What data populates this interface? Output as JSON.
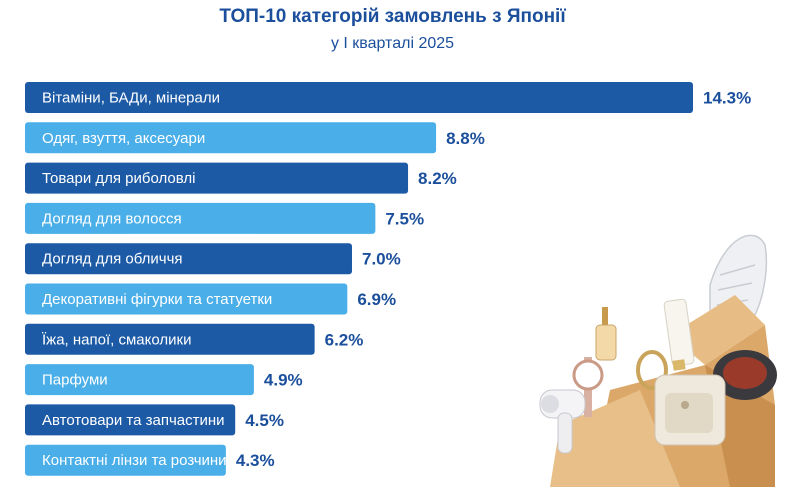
{
  "title": "ТОП-10 категорій замовлень з Японії",
  "subtitle": "у І кварталі 2025",
  "colors": {
    "dark": "#1c5aa6",
    "light": "#4aaee8",
    "text": "#1b4f9c",
    "box": "#e0b47c"
  },
  "illustration": {
    "name": "products-box-illustration"
  },
  "chart_data": {
    "type": "bar",
    "orientation": "horizontal",
    "categories": [
      "Вітаміни, БАДи, мінерали",
      "Одяг, взуття, аксесуари",
      "Товари для риболовлі",
      "Догляд для волосся",
      "Догляд для обличчя",
      "Декоративні фігурки та статуетки",
      "Їжа, напої, смаколики",
      "Парфуми",
      "Автотовари та запчастини",
      "Контактні лінзи та розчини"
    ],
    "values": [
      14.3,
      8.8,
      8.2,
      7.5,
      7.0,
      6.9,
      6.2,
      4.9,
      4.5,
      4.3
    ],
    "value_labels": [
      "14.3%",
      "8.8%",
      "8.2%",
      "7.5%",
      "7.0%",
      "6.9%",
      "6.2%",
      "4.9%",
      "4.5%",
      "4.3%"
    ],
    "grid": false,
    "legend": "none"
  }
}
